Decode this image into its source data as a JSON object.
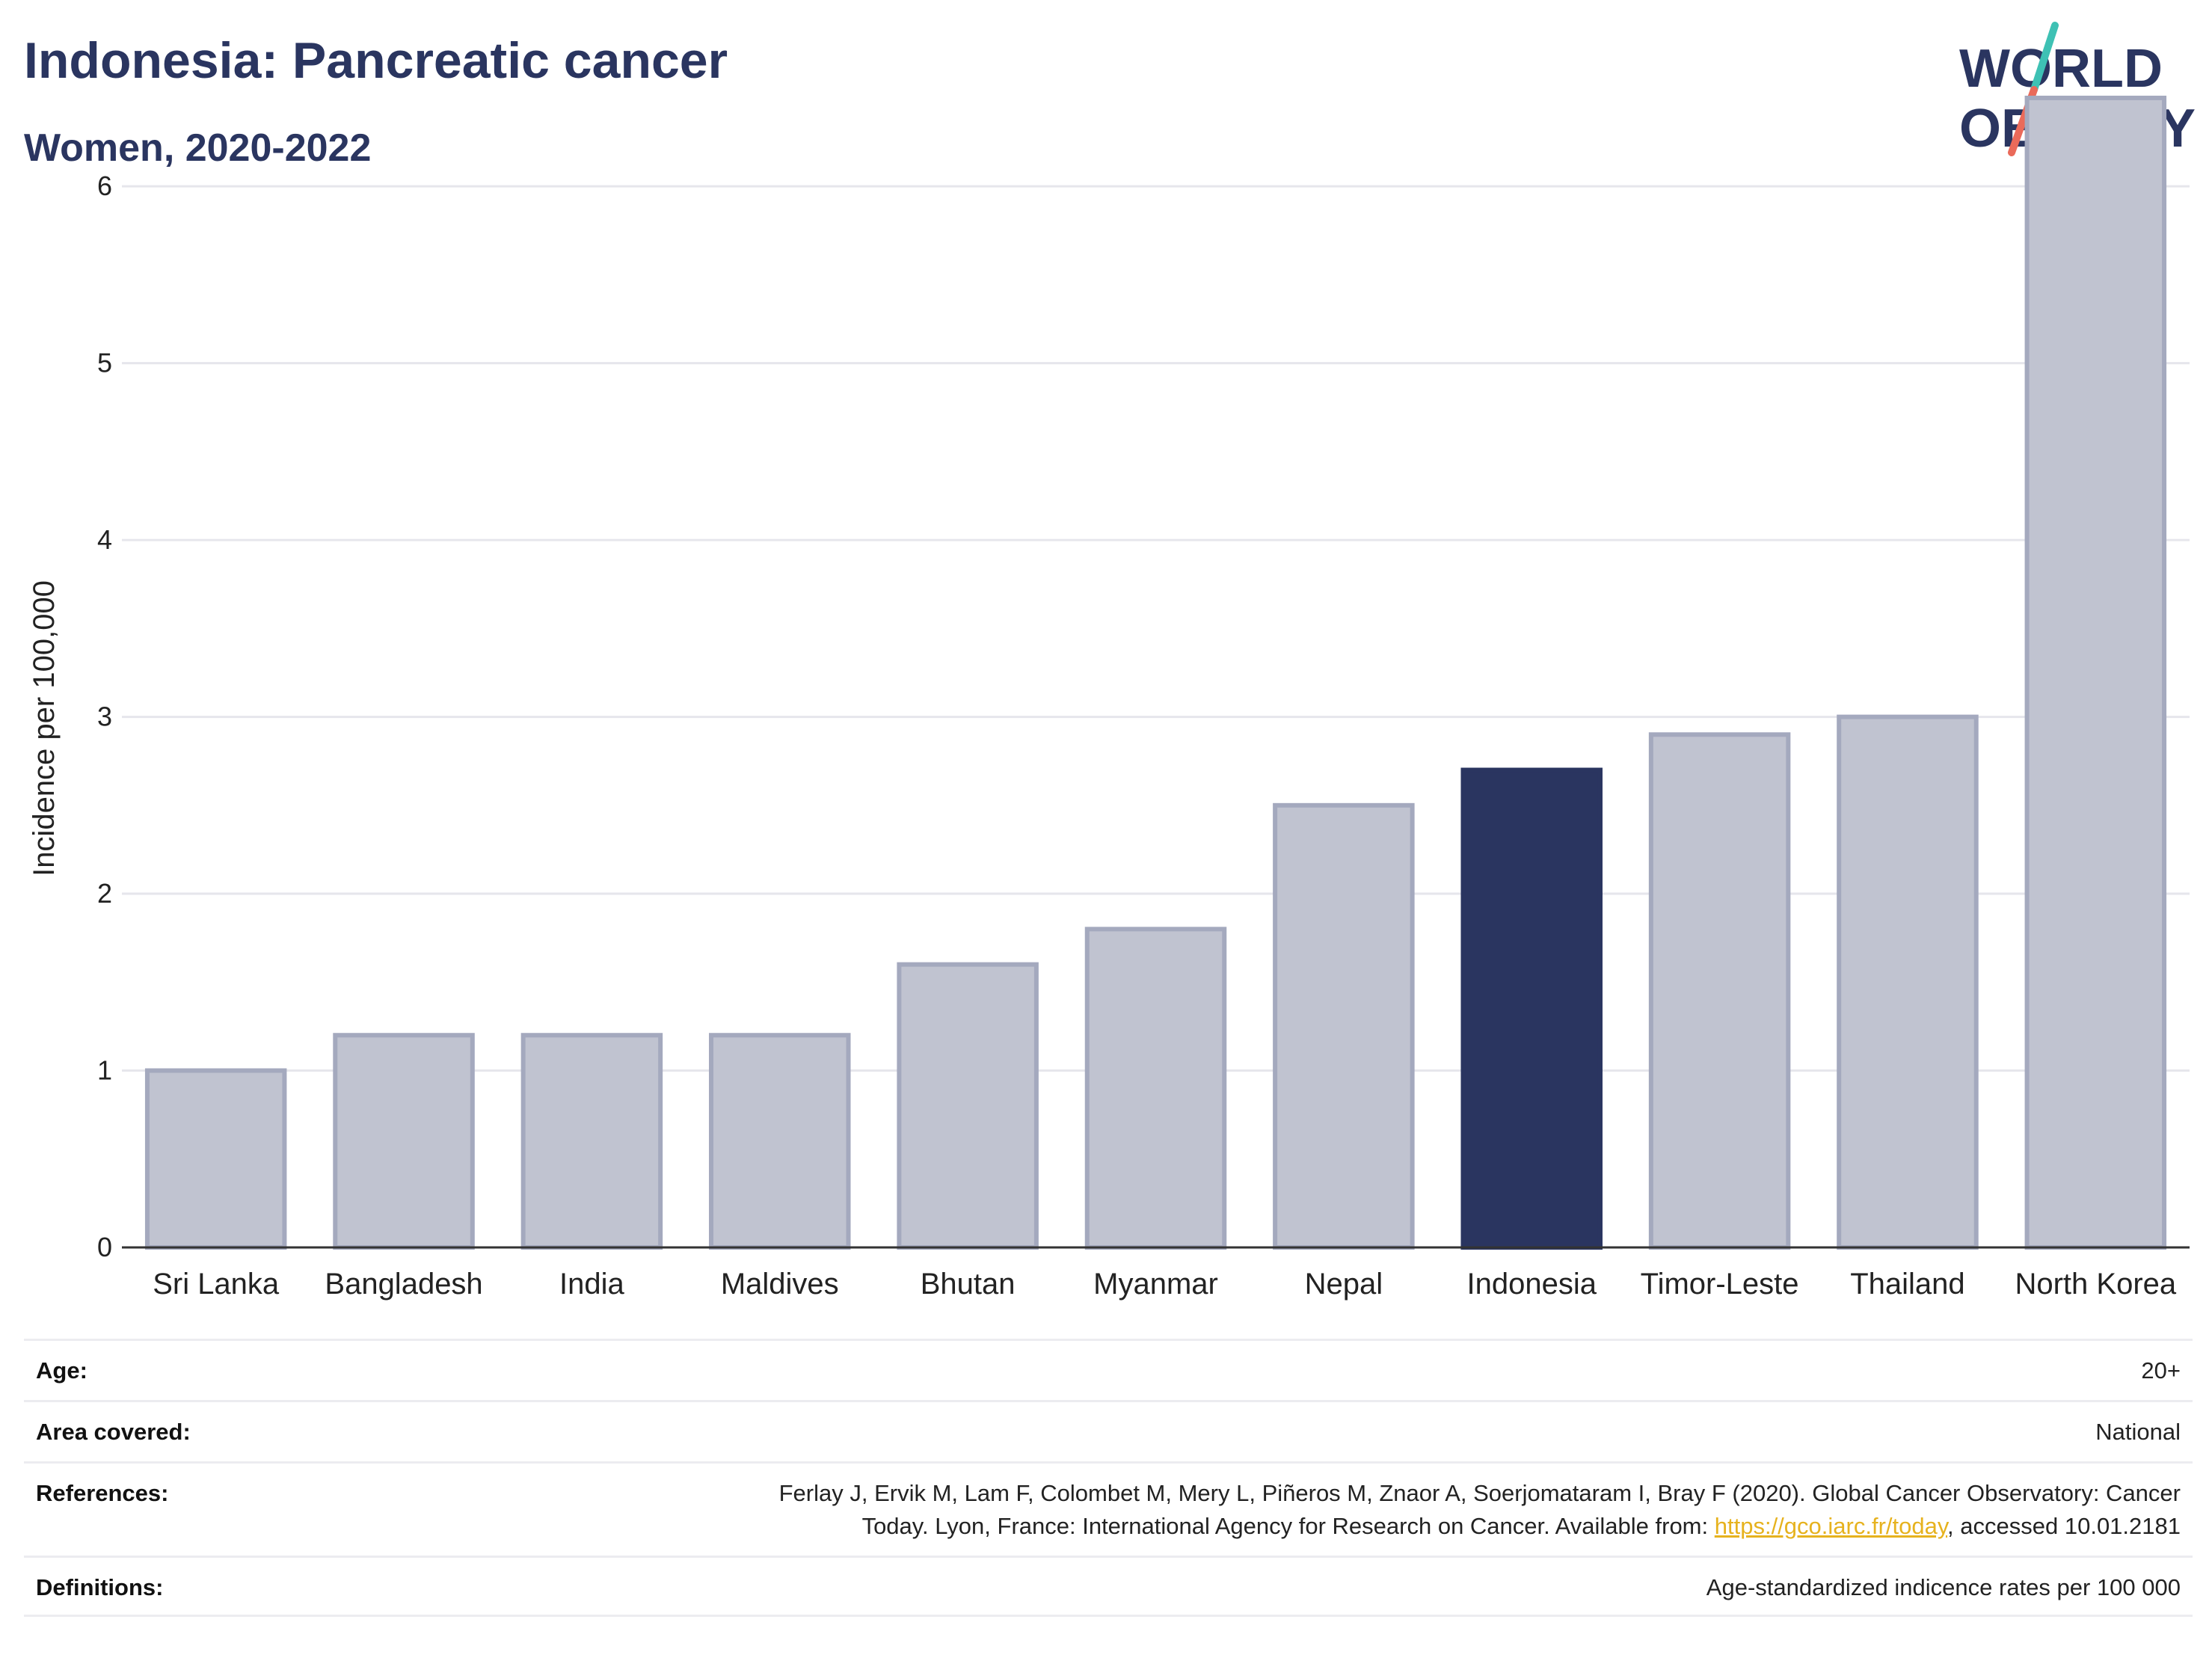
{
  "header": {
    "title": "Indonesia: Pancreatic cancer",
    "subtitle": "Women, 2020-2022"
  },
  "logo": {
    "line1": "WORLD",
    "line2": "OBESITY"
  },
  "chart_data": {
    "type": "bar",
    "categories": [
      "Sri Lanka",
      "Bangladesh",
      "India",
      "Maldives",
      "Bhutan",
      "Myanmar",
      "Nepal",
      "Indonesia",
      "Timor-Leste",
      "Thailand",
      "North Korea"
    ],
    "values": [
      1.0,
      1.2,
      1.2,
      1.2,
      1.6,
      1.8,
      2.5,
      2.7,
      2.9,
      3.0,
      6.5
    ],
    "highlight": "Indonesia",
    "ylabel": "Incidence per 100,000",
    "ylim": [
      0,
      6.8
    ],
    "yticks": [
      0,
      1,
      2,
      3,
      4,
      5,
      6
    ],
    "grid": true,
    "colors": {
      "bar": "#c0c3d0",
      "bar_edge": "#a4a9be",
      "highlight": "#2a3560",
      "grid": "#e6e6ec",
      "axis": "#333333"
    }
  },
  "info": {
    "age_label": "Age:",
    "age_value": "20+",
    "area_label": "Area covered:",
    "area_value": "National",
    "references_label": "References:",
    "references_line1": "Ferlay J, Ervik M, Lam F, Colombet M, Mery L, Piñeros M, Znaor A, Soerjomataram I, Bray F (2020). Global Cancer Observatory: Cancer",
    "references_line2_pre": "Today. Lyon, France: International Agency for Research on Cancer. Available from: ",
    "references_link": "https://gco.iarc.fr/today",
    "references_line2_post": ", accessed 10.01.2181",
    "definitions_label": "Definitions:",
    "definitions_value": "Age-standardized indicence rates per 100 000"
  }
}
